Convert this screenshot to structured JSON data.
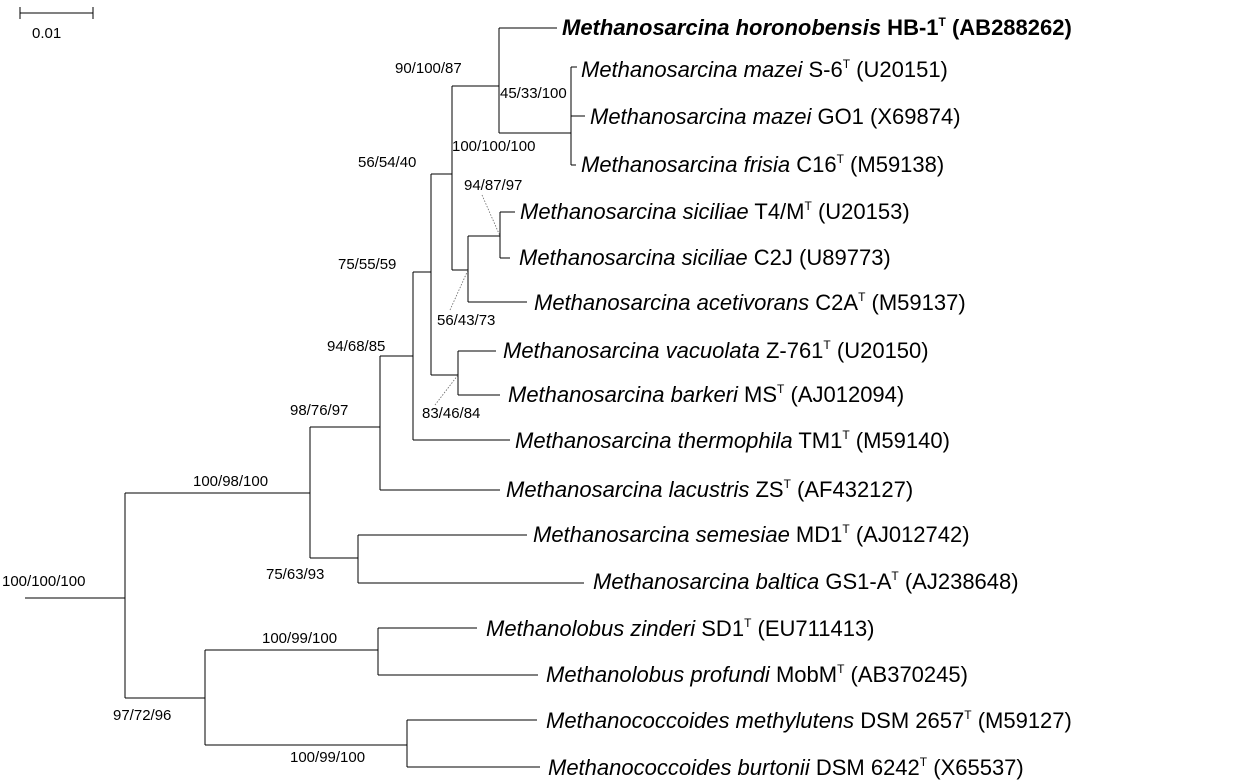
{
  "scale_bar": {
    "label": "0.01"
  },
  "taxa": [
    {
      "id": "horonobensis",
      "genus_species": "Methanosarcina horonobensis",
      "strain": "HB-1",
      "type_strain": true,
      "accession": "(AB288262)",
      "bold": true
    },
    {
      "id": "mazei_s6",
      "genus_species": "Methanosarcina mazei",
      "strain": "S-6",
      "type_strain": true,
      "accession": "(U20151)",
      "bold": false
    },
    {
      "id": "mazei_go1",
      "genus_species": "Methanosarcina mazei",
      "strain": "GO1",
      "type_strain": false,
      "accession": "(X69874)",
      "bold": false
    },
    {
      "id": "frisia",
      "genus_species": "Methanosarcina frisia",
      "strain": "C16",
      "type_strain": true,
      "accession": "(M59138)",
      "bold": false
    },
    {
      "id": "siciliae_t4m",
      "genus_species": "Methanosarcina siciliae",
      "strain": "T4/M",
      "type_strain": true,
      "accession": "(U20153)",
      "bold": false
    },
    {
      "id": "siciliae_c2j",
      "genus_species": "Methanosarcina siciliae",
      "strain": "C2J",
      "type_strain": false,
      "accession": "(U89773)",
      "bold": false
    },
    {
      "id": "acetivorans",
      "genus_species": "Methanosarcina acetivorans",
      "strain": "C2A",
      "type_strain": true,
      "accession": "(M59137)",
      "bold": false
    },
    {
      "id": "vacuolata",
      "genus_species": "Methanosarcina vacuolata",
      "strain": "Z-761",
      "type_strain": true,
      "accession": "(U20150)",
      "bold": false
    },
    {
      "id": "barkeri",
      "genus_species": "Methanosarcina barkeri",
      "strain": "MS",
      "type_strain": true,
      "accession": "(AJ012094)",
      "bold": false
    },
    {
      "id": "thermophila",
      "genus_species": "Methanosarcina thermophila",
      "strain": "TM1",
      "type_strain": true,
      "accession": "(M59140)",
      "bold": false
    },
    {
      "id": "lacustris",
      "genus_species": "Methanosarcina lacustris",
      "strain": "ZS",
      "type_strain": true,
      "accession": "(AF432127)",
      "bold": false
    },
    {
      "id": "semesiae",
      "genus_species": "Methanosarcina semesiae",
      "strain": "MD1",
      "type_strain": true,
      "accession": "(AJ012742)",
      "bold": false
    },
    {
      "id": "baltica",
      "genus_species": "Methanosarcina baltica",
      "strain": "GS1-A",
      "type_strain": true,
      "accession": "(AJ238648)",
      "bold": false
    },
    {
      "id": "zinderi",
      "genus_species": "Methanolobus zinderi",
      "strain": "SD1",
      "type_strain": true,
      "accession": "(EU711413)",
      "bold": false
    },
    {
      "id": "profundi",
      "genus_species": "Methanolobus profundi",
      "strain": "MobM",
      "type_strain": true,
      "accession": "(AB370245)",
      "bold": false
    },
    {
      "id": "methylutens",
      "genus_species": "Methanococcoides methylutens",
      "strain": "DSM 2657",
      "type_strain": true,
      "accession": "(M59127)",
      "bold": false
    },
    {
      "id": "burtonii",
      "genus_species": "Methanococcoides burtonii",
      "strain": "DSM 6242",
      "type_strain": true,
      "accession": "(X65537)",
      "bold": false
    }
  ],
  "type_marker": "T",
  "bootstrap": {
    "root": "100/100/100",
    "methanosarcina_clade": "100/98/100",
    "methanolobus_methanococcoides": "97/72/96",
    "methanolobus_clade": "100/99/100",
    "methanococcoides_clade": "100/99/100",
    "core_sarcina": "98/76/97",
    "semesiae_baltica": "75/63/93",
    "without_lacustris": "94/68/85",
    "without_thermophila": "75/55/59",
    "vacuolata_barkeri": "83/46/84",
    "mazei_siciliae_group": "56/54/40",
    "horonobensis_mazei": "90/100/87",
    "mazei_s6_go1": "45/33/100",
    "mazei_frisia": "100/100/100",
    "siciliae_pair": "94/87/97",
    "siciliae_acetivorans": "56/43/73"
  }
}
